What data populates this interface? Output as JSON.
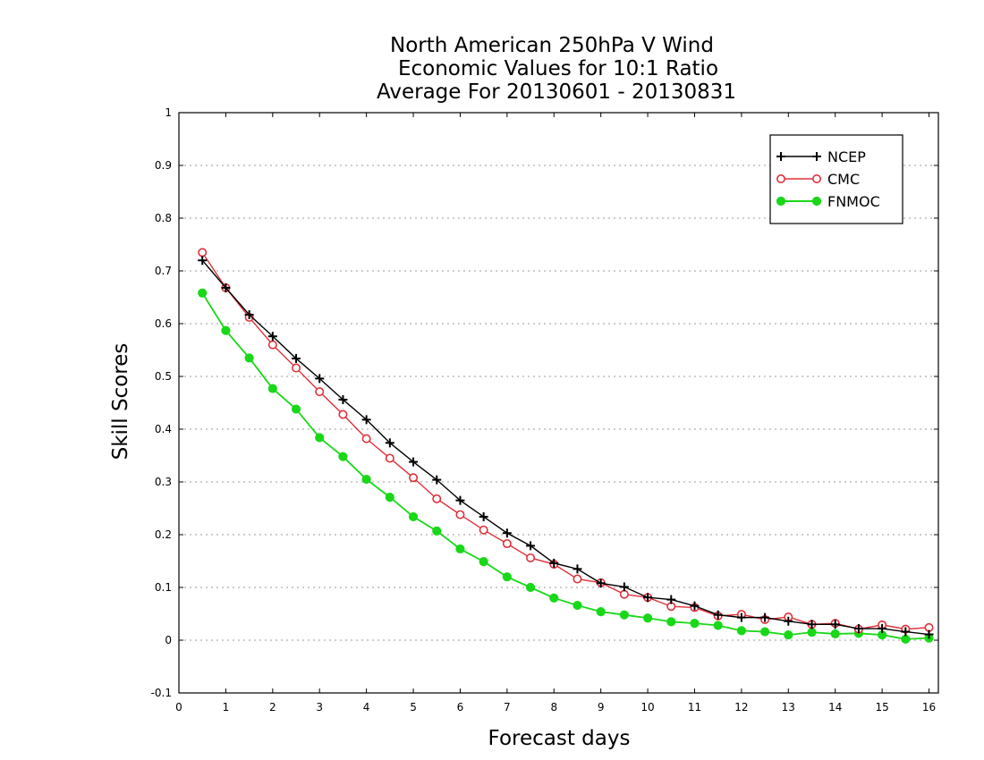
{
  "chart_data": {
    "type": "line",
    "title_lines": [
      "North American 250hPa V Wind",
      "Economic Values for 10:1 Ratio",
      "Average For 20130601 - 20130831"
    ],
    "xlabel": "Forecast days",
    "ylabel": "Skill Scores",
    "xlim": [
      0,
      16.2
    ],
    "ylim": [
      -0.1,
      1
    ],
    "xticks": [
      0,
      1,
      2,
      3,
      4,
      5,
      6,
      7,
      8,
      9,
      10,
      11,
      12,
      13,
      14,
      15,
      16
    ],
    "xtick_labels": [
      "0",
      "1",
      "2",
      "3",
      "4",
      "5",
      "6",
      "7",
      "8",
      "9",
      "10",
      "11",
      "12",
      "13",
      "14",
      "15",
      "16"
    ],
    "yticks": [
      -0.1,
      0,
      0.1,
      0.2,
      0.3,
      0.4,
      0.5,
      0.6,
      0.7,
      0.8,
      0.9,
      1
    ],
    "ytick_labels": [
      "-0.1",
      "0",
      "0.1",
      "0.2",
      "0.3",
      "0.4",
      "0.5",
      "0.6",
      "0.7",
      "0.8",
      "0.9",
      "1"
    ],
    "grid": "horizontal dotted",
    "legend_position": "top-right",
    "x": [
      0.5,
      1,
      1.5,
      2,
      2.5,
      3,
      3.5,
      4,
      4.5,
      5,
      5.5,
      6,
      6.5,
      7,
      7.5,
      8,
      8.5,
      9,
      9.5,
      10,
      10.5,
      11,
      11.5,
      12,
      12.5,
      13,
      13.5,
      14,
      14.5,
      15,
      15.5,
      16
    ],
    "series": [
      {
        "name": "NCEP",
        "color": "#000000",
        "marker": "plus",
        "values": [
          0.72,
          0.668,
          0.617,
          0.576,
          0.534,
          0.496,
          0.456,
          0.418,
          0.374,
          0.338,
          0.304,
          0.265,
          0.234,
          0.203,
          0.179,
          0.146,
          0.135,
          0.108,
          0.101,
          0.081,
          0.077,
          0.065,
          0.048,
          0.043,
          0.043,
          0.036,
          0.03,
          0.03,
          0.022,
          0.022,
          0.016,
          0.011
        ]
      },
      {
        "name": "CMC",
        "color": "#e0303a",
        "marker": "open-circle",
        "values": [
          0.735,
          0.668,
          0.612,
          0.56,
          0.516,
          0.471,
          0.428,
          0.382,
          0.345,
          0.308,
          0.268,
          0.238,
          0.209,
          0.183,
          0.156,
          0.144,
          0.116,
          0.109,
          0.087,
          0.081,
          0.064,
          0.062,
          0.046,
          0.049,
          0.039,
          0.044,
          0.03,
          0.032,
          0.021,
          0.029,
          0.021,
          0.024
        ]
      },
      {
        "name": "FNMOC",
        "color": "#18d818",
        "marker": "filled-circle",
        "values": [
          0.658,
          0.587,
          0.535,
          0.477,
          0.438,
          0.384,
          0.348,
          0.305,
          0.271,
          0.234,
          0.207,
          0.173,
          0.149,
          0.12,
          0.1,
          0.08,
          0.066,
          0.054,
          0.048,
          0.042,
          0.035,
          0.032,
          0.028,
          0.018,
          0.016,
          0.01,
          0.015,
          0.012,
          0.013,
          0.01,
          0.002,
          0.004
        ]
      }
    ]
  }
}
